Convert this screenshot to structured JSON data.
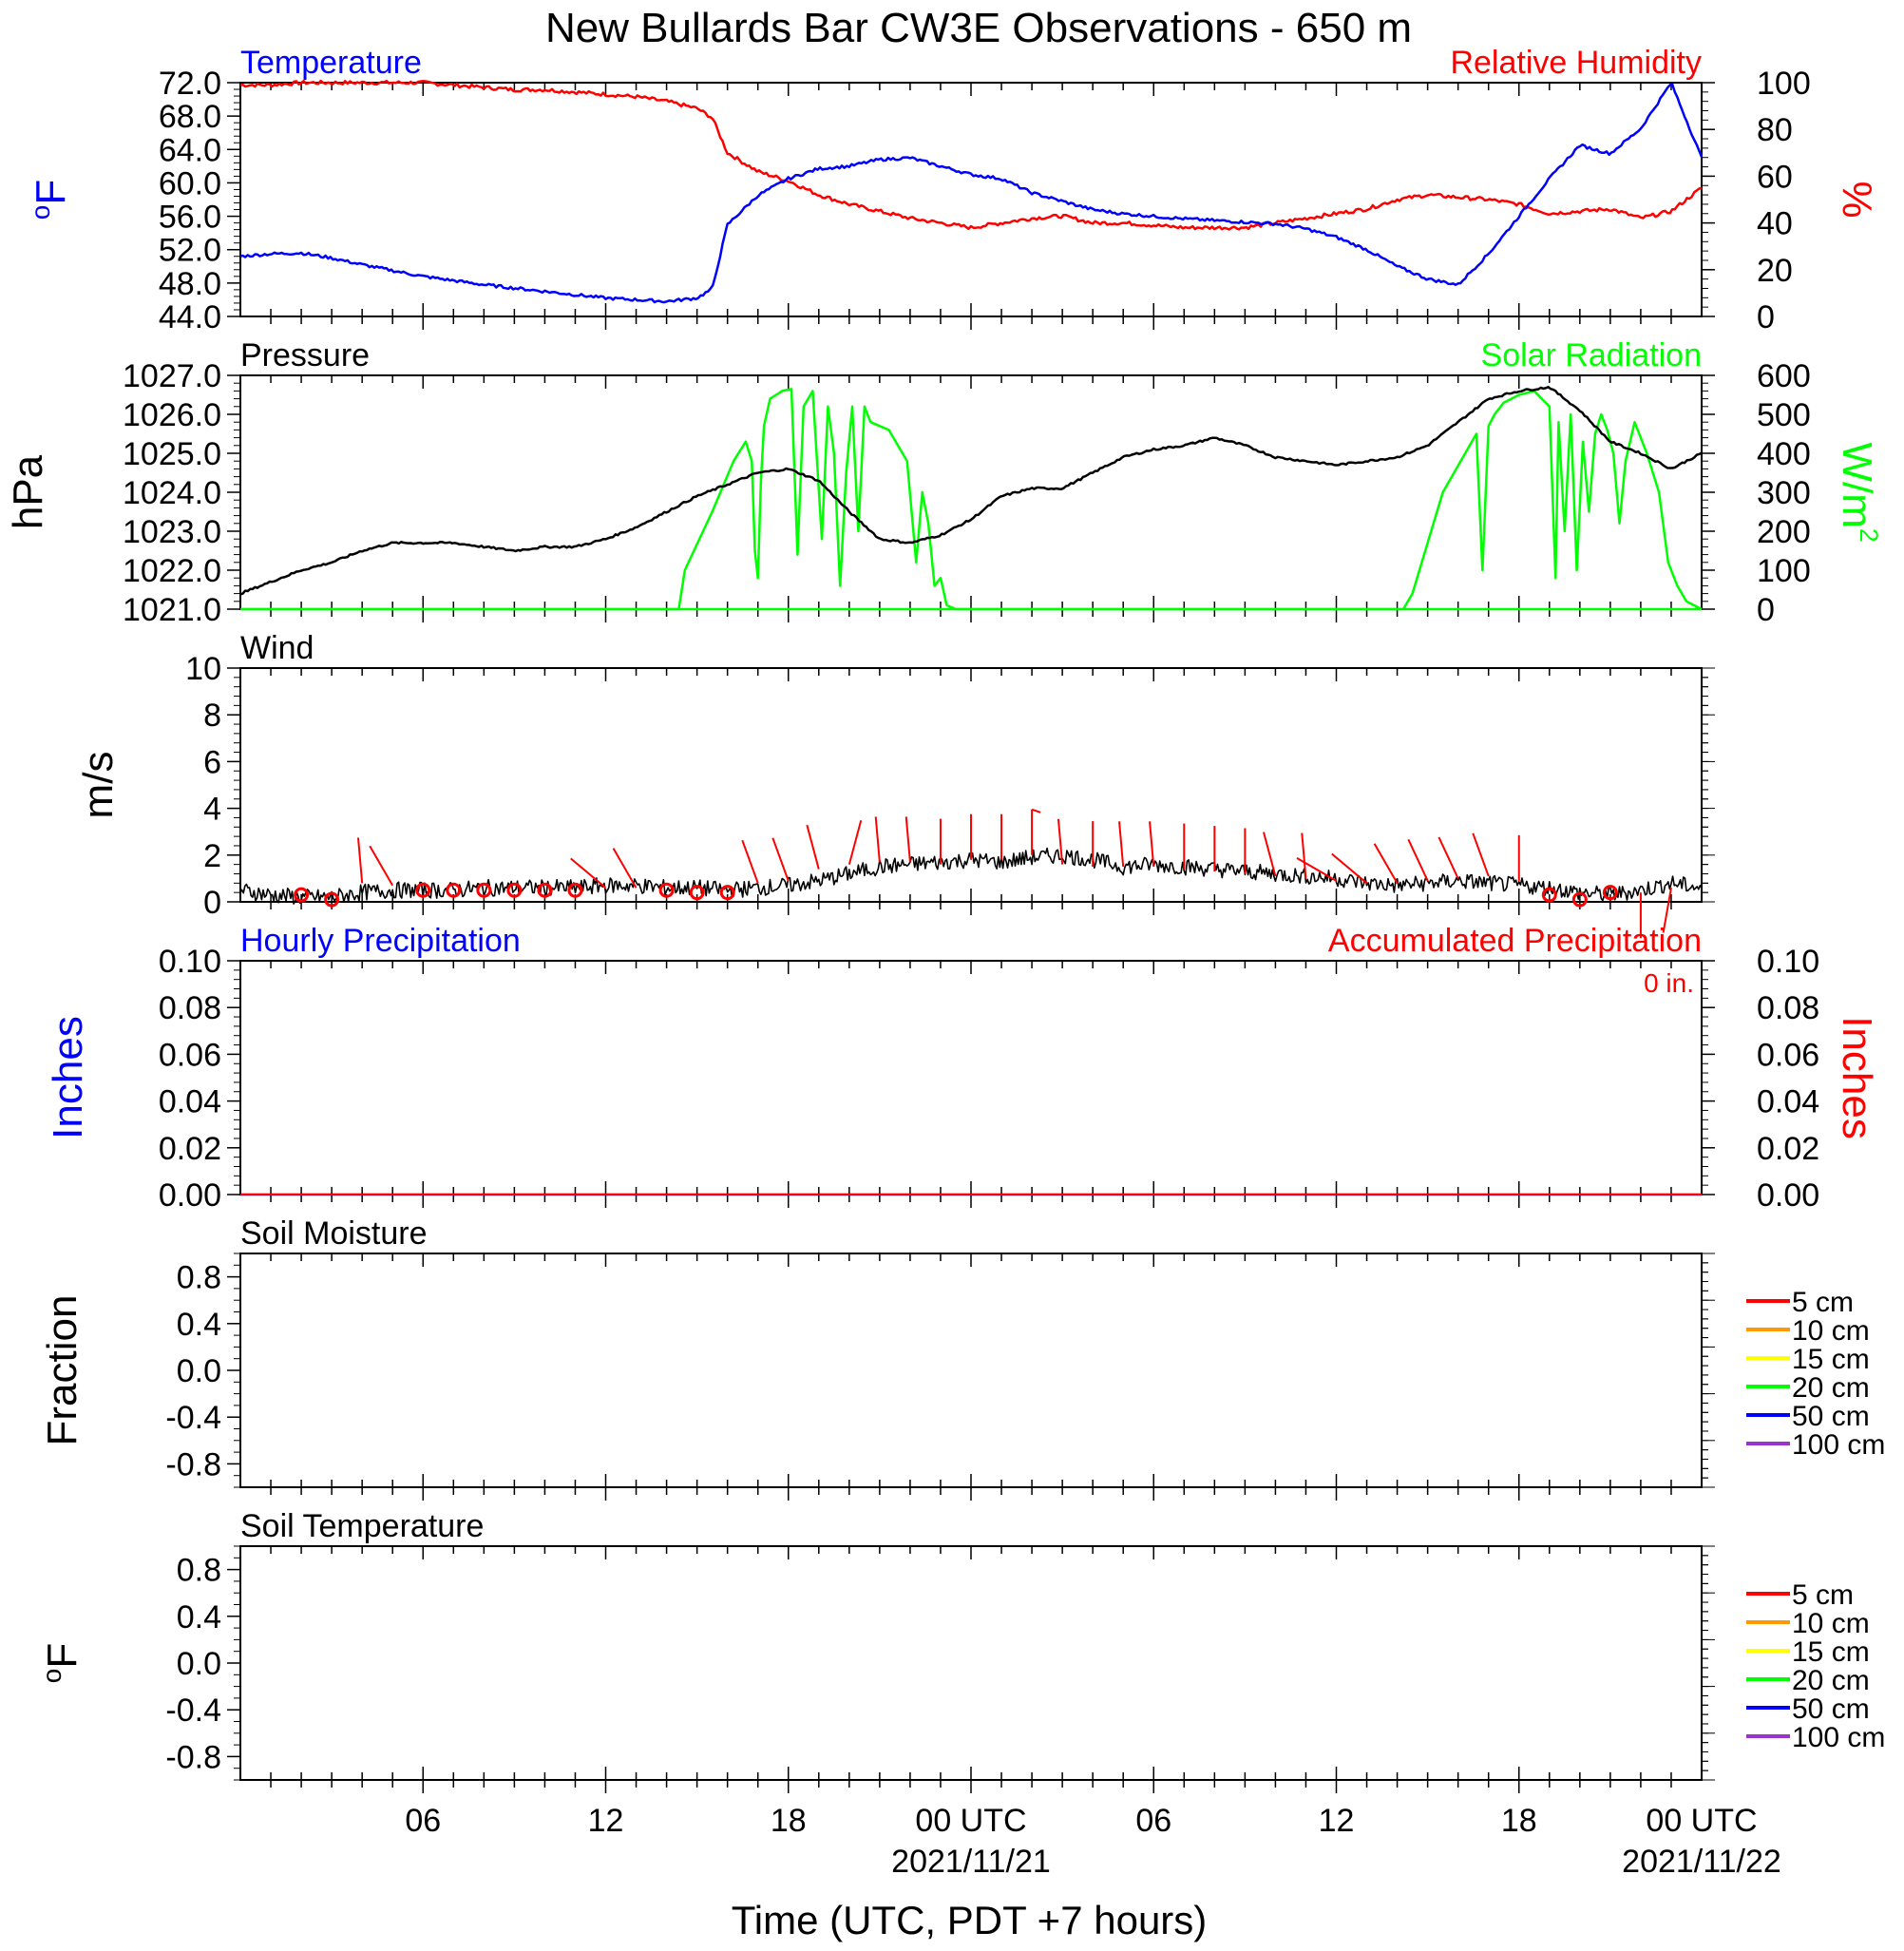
{
  "title": "New Bullards Bar CW3E Observations - 650 m",
  "x_axis": {
    "label": "Time (UTC, PDT +7 hours)",
    "range_hours": [
      0,
      48
    ],
    "ticks": [
      {
        "h": 6,
        "label": "06"
      },
      {
        "h": 12,
        "label": "12"
      },
      {
        "h": 18,
        "label": "18"
      },
      {
        "h": 24,
        "label": "00 UTC",
        "date": "2021/11/21"
      },
      {
        "h": 30,
        "label": "06"
      },
      {
        "h": 36,
        "label": "12"
      },
      {
        "h": 42,
        "label": "18"
      },
      {
        "h": 48,
        "label": "00 UTC",
        "date": "2021/11/22"
      }
    ]
  },
  "colors": {
    "temperature": "#0000ff",
    "humidity": "#ff0000",
    "pressure": "#000000",
    "solar": "#00ff00",
    "wind_speed": "#000000",
    "wind_barb": "#ff0000",
    "hourly_precip": "#0000ff",
    "accum_precip": "#ff0000",
    "soil_legend": [
      "#ff0000",
      "#ff9900",
      "#ffff00",
      "#00ff00",
      "#0000ff",
      "#9933cc"
    ]
  },
  "chart_data": [
    {
      "id": "temp_rh",
      "type": "line",
      "left_title": "Temperature",
      "right_title": "Relative Humidity",
      "ylabel": "°F",
      "y2label": "%",
      "ylim": [
        44,
        72
      ],
      "yticks": [
        "72.0",
        "68.0",
        "64.0",
        "60.0",
        "56.0",
        "52.0",
        "48.0",
        "44.0"
      ],
      "y2lim": [
        0,
        100
      ],
      "y2ticks": [
        "100",
        "80",
        "60",
        "40",
        "20",
        "0"
      ],
      "x_hours": [
        0,
        1,
        2,
        3,
        4,
        5,
        6,
        7,
        8,
        9,
        10,
        11,
        12,
        13,
        14,
        15,
        15.5,
        16,
        17,
        18,
        19,
        20,
        21,
        22,
        23,
        24,
        25,
        26,
        27,
        28,
        29,
        30,
        31,
        32,
        33,
        34,
        35,
        36,
        37,
        38,
        39,
        40,
        41,
        42,
        43,
        44,
        45,
        46,
        47,
        48
      ],
      "series": [
        {
          "name": "Temperature",
          "axis": "left",
          "values": [
            51.2,
            51.5,
            51.6,
            51,
            50.2,
            49.5,
            48.8,
            48.3,
            47.8,
            47.4,
            47,
            46.6,
            46.2,
            46,
            45.8,
            46.2,
            47.3,
            55,
            58.5,
            60.5,
            61.7,
            62,
            62.8,
            63,
            62,
            61,
            60.5,
            58.8,
            57.8,
            56.8,
            56.3,
            56,
            55.7,
            55.5,
            55.3,
            55.1,
            54.5,
            53.5,
            52,
            50,
            48.5,
            47.8,
            51.5,
            56,
            60.5,
            64.5,
            63.5,
            66.5,
            72,
            63
          ]
        },
        {
          "name": "Relative Humidity",
          "axis": "right",
          "values": [
            99,
            99,
            100,
            100,
            100,
            100,
            100,
            99,
            98,
            97,
            97,
            96,
            95,
            94,
            92,
            89,
            85,
            70,
            62,
            58,
            52,
            48,
            45,
            42,
            40,
            38,
            40,
            42,
            43,
            40,
            40,
            39,
            38,
            38,
            38,
            40,
            42,
            44,
            46,
            50,
            52,
            51,
            50,
            48,
            44,
            45,
            46,
            42,
            45,
            55
          ]
        }
      ]
    },
    {
      "id": "pressure_solar",
      "type": "line",
      "left_title": "Pressure",
      "right_title": "Solar Radiation",
      "ylabel": "hPa",
      "y2label": "W/m",
      "y2label_sup": "2",
      "ylim": [
        1021,
        1027
      ],
      "yticks": [
        "1027.0",
        "1026.0",
        "1025.0",
        "1024.0",
        "1023.0",
        "1022.0",
        "1021.0"
      ],
      "y2lim": [
        0,
        600
      ],
      "y2ticks": [
        "600",
        "500",
        "400",
        "300",
        "200",
        "100",
        "0"
      ],
      "pressure_x": [
        0,
        1,
        2,
        3,
        4,
        5,
        6,
        7,
        8,
        9,
        10,
        11,
        12,
        13,
        14,
        15,
        16,
        17,
        18,
        19,
        20,
        21,
        22,
        23,
        24,
        25,
        26,
        27,
        28,
        29,
        30,
        31,
        32,
        33,
        34,
        35,
        36,
        37,
        38,
        39,
        40,
        41,
        42,
        43,
        44,
        45,
        46,
        47,
        48
      ],
      "pressure_values": [
        1021.4,
        1021.7,
        1022.0,
        1022.2,
        1022.5,
        1022.7,
        1022.7,
        1022.7,
        1022.6,
        1022.5,
        1022.6,
        1022.6,
        1022.8,
        1023.1,
        1023.5,
        1023.9,
        1024.2,
        1024.5,
        1024.6,
        1024.3,
        1023.5,
        1022.8,
        1022.7,
        1022.9,
        1023.3,
        1023.9,
        1024.1,
        1024.1,
        1024.5,
        1024.9,
        1025.1,
        1025.2,
        1025.4,
        1025.2,
        1024.9,
        1024.8,
        1024.7,
        1024.8,
        1024.9,
        1025.2,
        1025.8,
        1026.4,
        1026.6,
        1026.7,
        1026.1,
        1025.3,
        1025.0,
        1024.6,
        1025.0
      ],
      "solar_x": [
        0,
        14.4,
        14.6,
        15.5,
        16.2,
        16.6,
        16.8,
        16.9,
        17.0,
        17.1,
        17.2,
        17.4,
        17.6,
        17.8,
        18.1,
        18.3,
        18.5,
        18.8,
        19.1,
        19.3,
        19.5,
        19.7,
        19.9,
        20.1,
        20.3,
        20.5,
        20.7,
        21.0,
        21.3,
        21.6,
        21.9,
        22.2,
        22.4,
        22.6,
        22.8,
        23.0,
        23.2,
        23.5,
        24,
        48
      ],
      "solar_values": [
        0,
        0,
        100,
        250,
        380,
        430,
        380,
        150,
        80,
        330,
        470,
        540,
        550,
        560,
        565,
        140,
        520,
        560,
        180,
        520,
        400,
        60,
        350,
        520,
        200,
        520,
        480,
        470,
        460,
        420,
        380,
        120,
        300,
        220,
        60,
        80,
        10,
        0,
        0,
        0
      ],
      "solar2_x": [
        0,
        38.2,
        38.5,
        39.5,
        40.6,
        40.8,
        41.0,
        41.2,
        41.5,
        42.0,
        42.5,
        43.0,
        43.2,
        43.3,
        43.5,
        43.7,
        43.9,
        44.1,
        44.3,
        44.5,
        44.7,
        44.9,
        45.1,
        45.3,
        45.5,
        45.8,
        46.2,
        46.6,
        46.9,
        47.2,
        47.5,
        48
      ],
      "solar2_values": [
        0,
        0,
        40,
        300,
        450,
        100,
        470,
        500,
        530,
        550,
        560,
        520,
        80,
        480,
        200,
        500,
        100,
        430,
        250,
        450,
        500,
        460,
        400,
        220,
        380,
        480,
        400,
        300,
        120,
        60,
        20,
        0
      ]
    },
    {
      "id": "wind",
      "type": "line",
      "left_title": "Wind",
      "ylabel": "m/s",
      "ylim": [
        0,
        10
      ],
      "yticks": [
        "10",
        "8",
        "6",
        "4",
        "2",
        "0"
      ],
      "speed_x": [
        0,
        1,
        2,
        3,
        4,
        5,
        6,
        7,
        8,
        9,
        10,
        11,
        12,
        13,
        14,
        15,
        16,
        17,
        18,
        19,
        20,
        21,
        22,
        23,
        24,
        25,
        26,
        27,
        28,
        29,
        30,
        31,
        32,
        33,
        34,
        35,
        36,
        37,
        38,
        39,
        40,
        41,
        42,
        43,
        44,
        45,
        46,
        47,
        48
      ],
      "speed_values": [
        0.5,
        0.3,
        0.2,
        0.2,
        0.4,
        0.5,
        0.5,
        0.5,
        0.6,
        0.6,
        0.6,
        0.6,
        0.7,
        0.7,
        0.6,
        0.6,
        0.5,
        0.6,
        0.7,
        0.9,
        1.2,
        1.5,
        1.6,
        1.7,
        1.8,
        1.7,
        1.9,
        2.0,
        1.8,
        1.5,
        1.6,
        1.5,
        1.4,
        1.3,
        1.2,
        1.1,
        1.0,
        0.8,
        0.7,
        0.8,
        0.9,
        0.8,
        0.7,
        0.6,
        0.4,
        0.3,
        0.5,
        0.8,
        0.6
      ],
      "barbs": [
        {
          "h": 2,
          "speed": 0.3,
          "dir": 0,
          "calm": true
        },
        {
          "h": 3,
          "speed": 0.1,
          "dir": 0,
          "calm": true
        },
        {
          "h": 4,
          "speed": 0.8,
          "dir": 355
        },
        {
          "h": 5,
          "speed": 0.7,
          "dir": 330
        },
        {
          "h": 6,
          "speed": 0.5,
          "dir": 0,
          "calm": true
        },
        {
          "h": 7,
          "speed": 0.5,
          "dir": 0,
          "calm": true
        },
        {
          "h": 8,
          "speed": 0.5,
          "dir": 0,
          "calm": true
        },
        {
          "h": 9,
          "speed": 0.5,
          "dir": 0,
          "calm": true
        },
        {
          "h": 10,
          "speed": 0.5,
          "dir": 0,
          "calm": true
        },
        {
          "h": 11,
          "speed": 0.5,
          "dir": 0,
          "calm": true
        },
        {
          "h": 12,
          "speed": 0.6,
          "dir": 310
        },
        {
          "h": 13,
          "speed": 0.6,
          "dir": 330
        },
        {
          "h": 14,
          "speed": 0.5,
          "dir": 0,
          "calm": true
        },
        {
          "h": 15,
          "speed": 0.4,
          "dir": 0,
          "calm": true
        },
        {
          "h": 16,
          "speed": 0.4,
          "dir": 0,
          "calm": true
        },
        {
          "h": 17,
          "speed": 0.8,
          "dir": 340
        },
        {
          "h": 18,
          "speed": 0.9,
          "dir": 340
        },
        {
          "h": 19,
          "speed": 1.4,
          "dir": 345
        },
        {
          "h": 20,
          "speed": 1.6,
          "dir": 15
        },
        {
          "h": 21,
          "speed": 1.7,
          "dir": 355
        },
        {
          "h": 22,
          "speed": 1.7,
          "dir": 355
        },
        {
          "h": 23,
          "speed": 1.6,
          "dir": 0
        },
        {
          "h": 24,
          "speed": 1.8,
          "dir": 0
        },
        {
          "h": 25,
          "speed": 1.8,
          "dir": 0
        },
        {
          "h": 26,
          "speed": 2.0,
          "dir": 0,
          "flag": true
        },
        {
          "h": 27,
          "speed": 1.6,
          "dir": 355
        },
        {
          "h": 28,
          "speed": 1.5,
          "dir": 0
        },
        {
          "h": 29,
          "speed": 1.5,
          "dir": 355
        },
        {
          "h": 30,
          "speed": 1.5,
          "dir": 355
        },
        {
          "h": 31,
          "speed": 1.4,
          "dir": 0
        },
        {
          "h": 32,
          "speed": 1.3,
          "dir": 0
        },
        {
          "h": 33,
          "speed": 1.2,
          "dir": 0
        },
        {
          "h": 34,
          "speed": 1.1,
          "dir": 345
        },
        {
          "h": 35,
          "speed": 1.0,
          "dir": 355
        },
        {
          "h": 36,
          "speed": 0.9,
          "dir": 300
        },
        {
          "h": 37,
          "speed": 0.8,
          "dir": 310
        },
        {
          "h": 38,
          "speed": 0.8,
          "dir": 330
        },
        {
          "h": 39,
          "speed": 0.9,
          "dir": 335
        },
        {
          "h": 40,
          "speed": 1.0,
          "dir": 335
        },
        {
          "h": 41,
          "speed": 1.1,
          "dir": 340
        },
        {
          "h": 42,
          "speed": 0.9,
          "dir": 0
        },
        {
          "h": 43,
          "speed": 0.3,
          "dir": 0,
          "calm": true
        },
        {
          "h": 44,
          "speed": 0.1,
          "dir": 0,
          "calm": true
        },
        {
          "h": 45,
          "speed": 0.4,
          "dir": 0,
          "calm": true
        },
        {
          "h": 46,
          "speed": 0.4,
          "dir": 180
        },
        {
          "h": 47,
          "speed": 0.6,
          "dir": 190
        }
      ]
    },
    {
      "id": "precip",
      "type": "line",
      "left_title": "Hourly Precipitation",
      "right_title": "Accumulated Precipitation",
      "accum_label": "0 in.",
      "ylabel": "Inches",
      "y2label": "Inches",
      "ylim": [
        0,
        0.1
      ],
      "yticks": [
        "0.10",
        "0.08",
        "0.06",
        "0.04",
        "0.02",
        "0.00"
      ],
      "y2ticks": [
        "0.10",
        "0.08",
        "0.06",
        "0.04",
        "0.02",
        "0.00"
      ],
      "hourly_values": [
        0,
        0
      ],
      "accum_values": [
        0,
        0
      ]
    },
    {
      "id": "soil_moisture",
      "type": "line",
      "left_title": "Soil Moisture",
      "ylabel": "Fraction",
      "ylim": [
        -1,
        1
      ],
      "yticks": [
        "0.8",
        "0.4",
        "0.0",
        "-0.4",
        "-0.8"
      ],
      "legend": [
        "5 cm",
        "10 cm",
        "15 cm",
        "20 cm",
        "50 cm",
        "100 cm"
      ]
    },
    {
      "id": "soil_temperature",
      "type": "line",
      "left_title": "Soil Temperature",
      "ylabel": "°F",
      "ylim": [
        -1,
        1
      ],
      "yticks": [
        "0.8",
        "0.4",
        "0.0",
        "-0.4",
        "-0.8"
      ],
      "legend": [
        "5 cm",
        "10 cm",
        "15 cm",
        "20 cm",
        "50 cm",
        "100 cm"
      ]
    }
  ]
}
